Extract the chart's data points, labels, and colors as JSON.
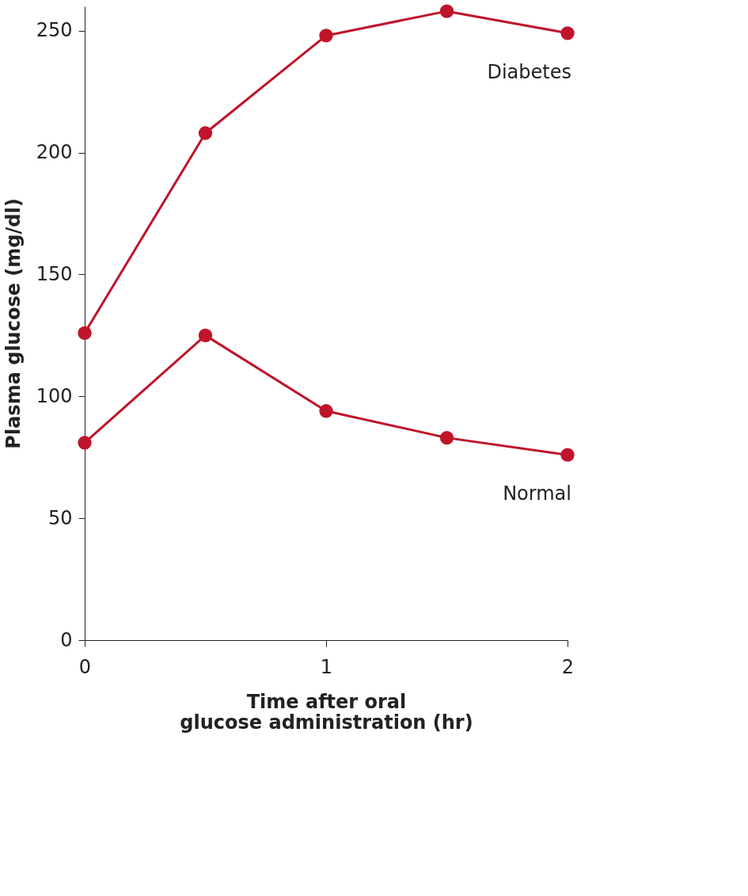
{
  "chart_data": {
    "type": "line",
    "xlabel": "Time after oral glucose administration (hr)",
    "ylabel": "Plasma glucose (mg/dl)",
    "x": [
      0,
      0.5,
      1,
      1.5,
      2
    ],
    "series": [
      {
        "name": "Diabetes",
        "color": "#c0142a",
        "values": [
          126,
          208,
          248,
          258,
          249
        ]
      },
      {
        "name": "Normal",
        "color": "#c0142a",
        "values": [
          81,
          125,
          94,
          83,
          76
        ]
      }
    ],
    "xlim": [
      0,
      2
    ],
    "xticks": [
      0,
      1,
      2
    ],
    "ylim": [
      0,
      260
    ],
    "yticks": [
      0,
      50,
      100,
      150,
      200,
      250
    ],
    "grid": false,
    "legend": "right",
    "marker": "circle",
    "line_style": "solid"
  }
}
